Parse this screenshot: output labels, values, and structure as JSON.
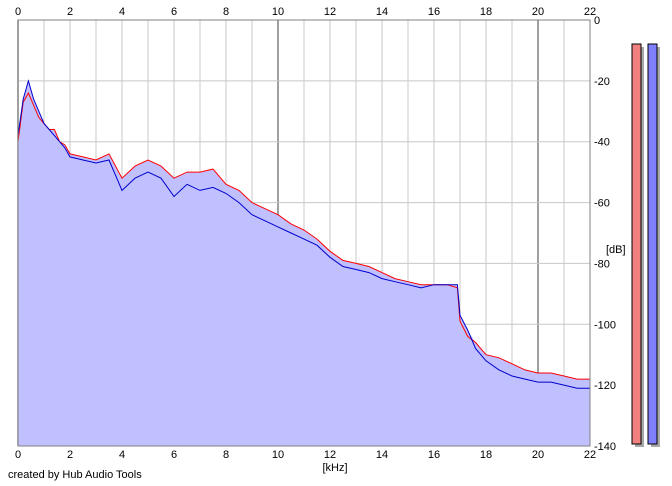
{
  "chart_data": {
    "type": "area",
    "title": "",
    "xlabel": "[kHz]",
    "ylabel": "[dB]",
    "xlim": [
      0,
      22
    ],
    "ylim": [
      -140,
      0
    ],
    "x_ticks": [
      0,
      2,
      4,
      6,
      8,
      10,
      12,
      14,
      16,
      18,
      20,
      22
    ],
    "y_ticks": [
      0,
      -20,
      -40,
      -60,
      -80,
      -100,
      -120,
      -140
    ],
    "y_tick_labels": [
      "0",
      "-20",
      "-40",
      "-60",
      "-80",
      "-100",
      "-120",
      "-140"
    ],
    "grid": true,
    "series": [
      {
        "color": "#ff0000",
        "x": [
          0,
          0.2,
          0.4,
          0.6,
          0.8,
          1,
          1.2,
          1.4,
          1.6,
          1.8,
          2,
          2.5,
          3,
          3.5,
          4,
          4.5,
          5,
          5.5,
          6,
          6.5,
          7,
          7.5,
          8,
          8.5,
          9,
          9.5,
          10,
          10.5,
          11,
          11.5,
          12,
          12.5,
          13,
          13.5,
          14,
          14.5,
          15,
          15.5,
          16,
          16.5,
          16.9,
          17,
          17.3,
          17.6,
          18,
          18.5,
          19,
          19.5,
          20,
          20.5,
          21,
          21.5,
          22
        ],
        "values": [
          -40,
          -27,
          -24,
          -28,
          -32,
          -34,
          -36,
          -36,
          -40,
          -41,
          -44,
          -45,
          -46,
          -44,
          -52,
          -48,
          -46,
          -48,
          -52,
          -50,
          -50,
          -49,
          -54,
          -56,
          -60,
          -62,
          -64,
          -67,
          -69,
          -72,
          -76,
          -79,
          -80,
          -81,
          -83,
          -85,
          -86,
          -87,
          -87,
          -87,
          -88,
          -99,
          -104,
          -106,
          -110,
          -111,
          -113,
          -115,
          -116,
          -116,
          -117,
          -118,
          -118
        ]
      },
      {
        "color": "#0000cc",
        "x": [
          0,
          0.2,
          0.4,
          0.6,
          0.8,
          1,
          1.2,
          1.4,
          1.6,
          1.8,
          2,
          2.5,
          3,
          3.5,
          4,
          4.5,
          5,
          5.5,
          6,
          6.5,
          7,
          7.5,
          8,
          8.5,
          9,
          9.5,
          10,
          10.5,
          11,
          11.5,
          12,
          12.5,
          13,
          13.5,
          14,
          14.5,
          15,
          15.5,
          16,
          16.5,
          16.9,
          17,
          17.3,
          17.6,
          18,
          18.5,
          19,
          19.5,
          20,
          20.5,
          21,
          21.5,
          22
        ],
        "values": [
          -38,
          -26,
          -20,
          -26,
          -30,
          -34,
          -36,
          -38,
          -40,
          -42,
          -45,
          -46,
          -47,
          -46,
          -56,
          -52,
          -50,
          -52,
          -58,
          -54,
          -56,
          -55,
          -57,
          -60,
          -64,
          -66,
          -68,
          -70,
          -72,
          -74,
          -78,
          -81,
          -82,
          -83,
          -85,
          -86,
          -87,
          -88,
          -87,
          -87,
          -87,
          -97,
          -102,
          -108,
          -112,
          -115,
          -117,
          -118,
          -119,
          -119,
          -120,
          -121,
          -121
        ]
      }
    ],
    "legend": "none"
  },
  "footer": {
    "credit": "created by Hub Audio Tools"
  },
  "meters": {
    "left": {
      "color": "#f08080",
      "level": 1.0
    },
    "right": {
      "color": "#8080ff",
      "level": 1.0
    }
  },
  "colors": {
    "fill": "#c0c0ff",
    "grid_minor": "#c8c8c8",
    "grid_major": "#808080"
  }
}
